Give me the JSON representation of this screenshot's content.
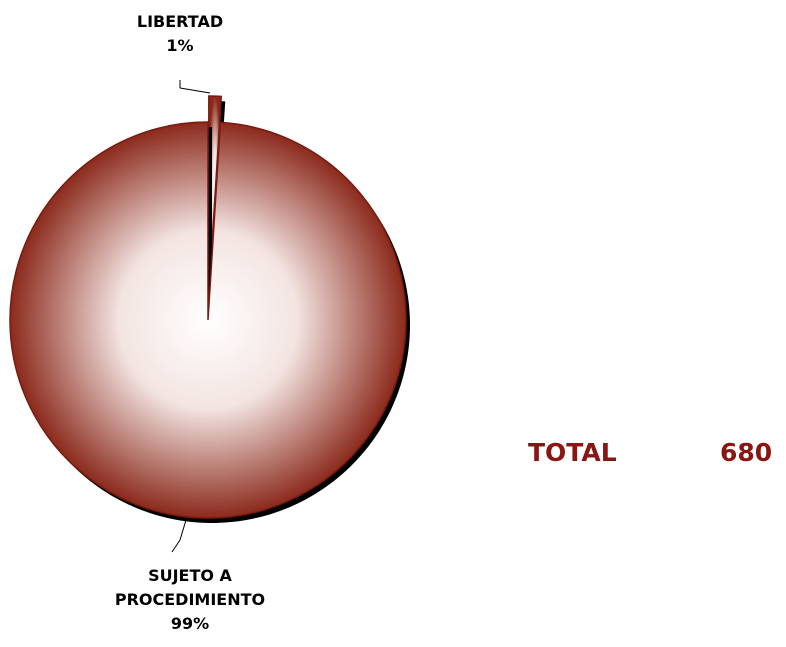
{
  "chart_data": {
    "type": "pie",
    "categories": [
      "LIBERTAD",
      "SUJETO A PROCEDIMIENTO"
    ],
    "values": [
      1,
      99
    ],
    "value_labels": [
      "1%",
      "99%"
    ],
    "color": "#8b2a1c",
    "total": {
      "label": "TOTAL",
      "value": 680
    }
  }
}
